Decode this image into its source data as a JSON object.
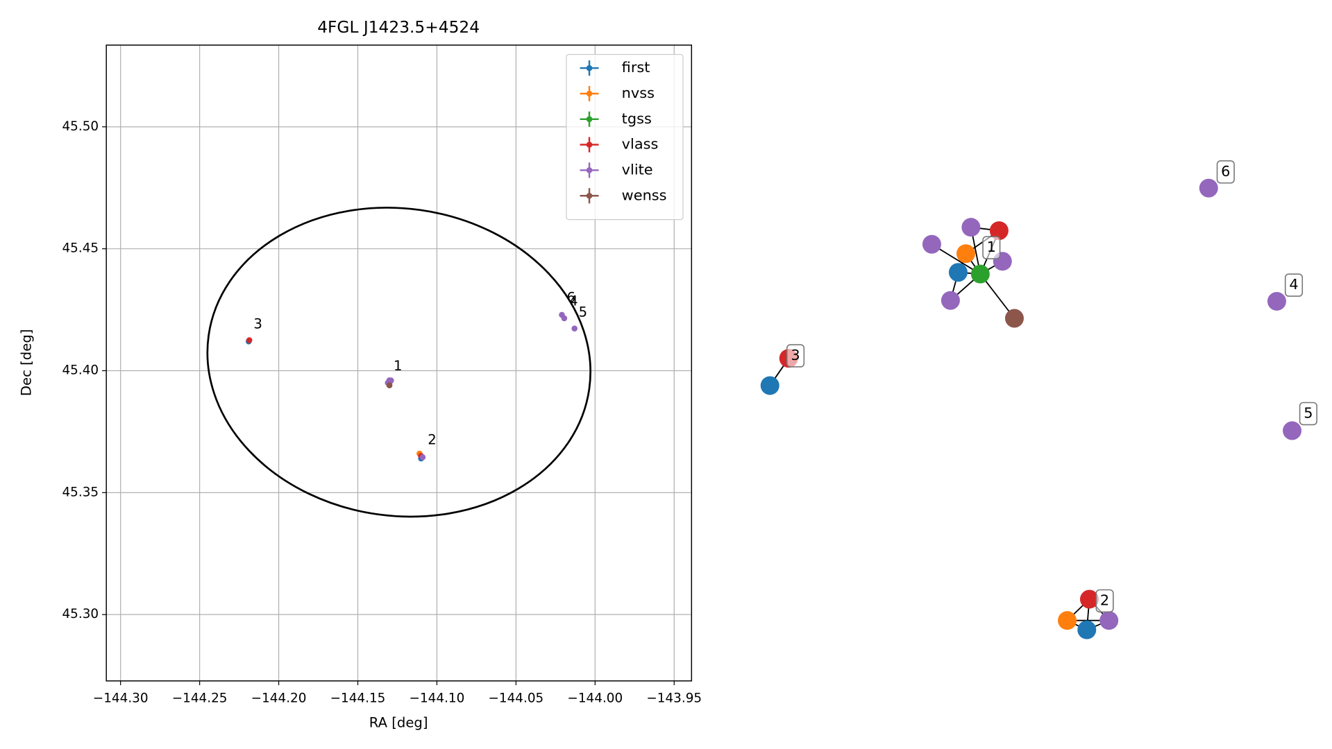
{
  "chart_data": [
    {
      "type": "scatter",
      "title": "4FGL J1423.5+4524",
      "xlabel": "RA [deg]",
      "ylabel": "Dec [deg]",
      "xlim": [
        -144.309,
        -143.939
      ],
      "ylim": [
        45.2728,
        45.5335
      ],
      "grid": true,
      "legend": "upper right",
      "xticks": [
        {
          "value": -144.3,
          "label": "−144.30"
        },
        {
          "value": -144.25,
          "label": "−144.25"
        },
        {
          "value": -144.2,
          "label": "−144.20"
        },
        {
          "value": -144.15,
          "label": "−144.15"
        },
        {
          "value": -144.1,
          "label": "−144.10"
        },
        {
          "value": -144.05,
          "label": "−144.05"
        },
        {
          "value": -144.0,
          "label": "−144.00"
        },
        {
          "value": -143.95,
          "label": "−143.95"
        }
      ],
      "yticks": [
        {
          "value": 45.3,
          "label": "45.30"
        },
        {
          "value": 45.35,
          "label": "45.35"
        },
        {
          "value": 45.4,
          "label": "45.40"
        },
        {
          "value": 45.45,
          "label": "45.45"
        },
        {
          "value": 45.5,
          "label": "45.50"
        }
      ],
      "series": [
        {
          "name": "first",
          "color": "#1f77b4",
          "x": [
            -144.13,
            -144.11,
            -144.219
          ],
          "values": [
            45.396,
            45.364,
            45.412
          ]
        },
        {
          "name": "nvss",
          "color": "#ff7f0e",
          "x": [
            -144.13,
            -144.111
          ],
          "values": [
            45.395,
            45.366
          ]
        },
        {
          "name": "tgss",
          "color": "#2ca02c",
          "x": [
            -144.13
          ],
          "values": [
            45.395
          ]
        },
        {
          "name": "vlass",
          "color": "#d62728",
          "x": [
            -144.13,
            -144.11,
            -144.2186
          ],
          "values": [
            45.396,
            45.365,
            45.4125
          ]
        },
        {
          "name": "vlite",
          "color": "#9467bd",
          "x": [
            -144.13,
            -144.131,
            -144.129,
            -144.13,
            -144.109,
            -144.0195,
            -144.013,
            -144.021
          ],
          "values": [
            45.396,
            45.395,
            45.396,
            45.395,
            45.3645,
            45.4215,
            45.4173,
            45.4229
          ]
        },
        {
          "name": "wenss",
          "color": "#8c564b",
          "x": [
            -144.13
          ],
          "values": [
            45.394
          ]
        }
      ],
      "annotations": [
        {
          "text": "1",
          "x": -144.1274,
          "y": 45.4002
        },
        {
          "text": "2",
          "x": -144.1058,
          "y": 45.3698
        },
        {
          "text": "3",
          "x": -144.2159,
          "y": 45.4173
        },
        {
          "text": "6",
          "x": -144.0179,
          "y": 45.4281
        },
        {
          "text": "4",
          "x": -144.0163,
          "y": 45.4267
        },
        {
          "text": "5",
          "x": -144.0104,
          "y": 45.4222
        }
      ],
      "ellipse": {
        "x": -144.124,
        "y": 45.4035,
        "width": 0.243,
        "height": 0.126,
        "angle": -8
      }
    },
    {
      "type": "graph",
      "nodes": [
        {
          "color": "#1f77b4"
        },
        {
          "color": "#ff7f0e"
        },
        {
          "color": "#2ca02c"
        },
        {
          "color": "#d62728"
        },
        {
          "color": "#9467bd"
        },
        {
          "color": "#9467bd"
        },
        {
          "color": "#9467bd"
        },
        {
          "color": "#9467bd"
        },
        {
          "color": "#8c564b"
        },
        {
          "color": "#d62728"
        },
        {
          "color": "#ff7f0e"
        },
        {
          "color": "#1f77b4"
        },
        {
          "color": "#9467bd"
        },
        {
          "color": "#d62728"
        },
        {
          "color": "#1f77b4"
        },
        {
          "color": "#9467bd"
        },
        {
          "color": "#9467bd"
        },
        {
          "color": "#9467bd"
        }
      ],
      "edges": [
        [
          2,
          0
        ],
        [
          2,
          1
        ],
        [
          2,
          3
        ],
        [
          2,
          4
        ],
        [
          2,
          5
        ],
        [
          2,
          6
        ],
        [
          2,
          7
        ],
        [
          2,
          8
        ],
        [
          0,
          1
        ],
        [
          1,
          3
        ],
        [
          4,
          3
        ],
        [
          0,
          7
        ],
        [
          9,
          10
        ],
        [
          9,
          11
        ],
        [
          9,
          12
        ],
        [
          10,
          11
        ],
        [
          10,
          12
        ],
        [
          11,
          12
        ],
        [
          13,
          14
        ]
      ],
      "labels": [
        "1",
        "2",
        "3",
        "4",
        "5",
        "6"
      ]
    }
  ]
}
